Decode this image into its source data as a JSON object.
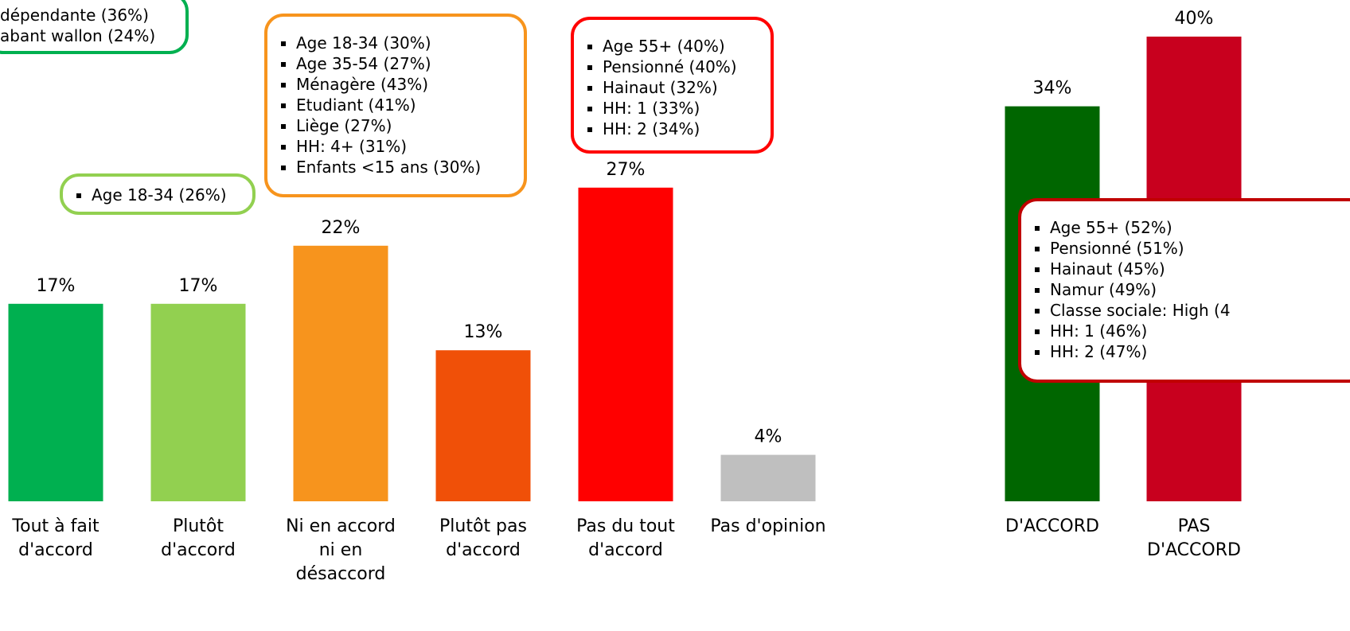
{
  "chart_data": [
    {
      "type": "bar",
      "categories": [
        "Tout à fait\nd'accord",
        "Plutôt\nd'accord",
        "Ni en accord\nni en\ndésaccord",
        "Plutôt pas\nd'accord",
        "Pas du tout\nd'accord",
        "Pas d'opinion"
      ],
      "values": [
        17,
        17,
        22,
        13,
        27,
        4
      ],
      "value_labels": [
        "17%",
        "17%",
        "22%",
        "13%",
        "27%",
        "4%"
      ],
      "colors": [
        "#00b050",
        "#92d050",
        "#f7941d",
        "#f05008",
        "#ff0000",
        "#bfbfbf"
      ],
      "annotations": [
        {
          "color": "#00b050",
          "lines": [
            "dépendante (36%)",
            "abant wallon (24%)"
          ]
        },
        {
          "color": "#92d050",
          "lines": [
            "Age 18-34 (26%)"
          ]
        },
        {
          "color": "#f7941d",
          "lines": [
            "Age 18-34 (30%)",
            "Age 35-54 (27%)",
            "Ménagère (43%)",
            "Etudiant (41%)",
            "Liège (27%)",
            "HH: 4+ (31%)",
            "Enfants <15 ans (30%)"
          ]
        },
        {
          "color": "#ff0000",
          "lines": [
            "Age 55+ (40%)",
            "Pensionné (40%)",
            "Hainaut (32%)",
            "HH: 1 (33%)",
            "HH: 2 (34%)"
          ]
        }
      ]
    },
    {
      "type": "bar",
      "categories": [
        "D'ACCORD",
        "PAS\nD'ACCORD"
      ],
      "values": [
        34,
        40
      ],
      "value_labels": [
        "34%",
        "40%"
      ],
      "colors": [
        "#006600",
        "#c8001e"
      ],
      "annotations": [
        {
          "color": "#c00000",
          "lines": [
            "Age 55+ (52%)",
            "Pensionné (51%)",
            "Hainaut (45%)",
            "Namur (49%)",
            "Classe sociale: High (4",
            "HH: 1 (46%)",
            "HH: 2 (47%)"
          ]
        }
      ]
    }
  ]
}
